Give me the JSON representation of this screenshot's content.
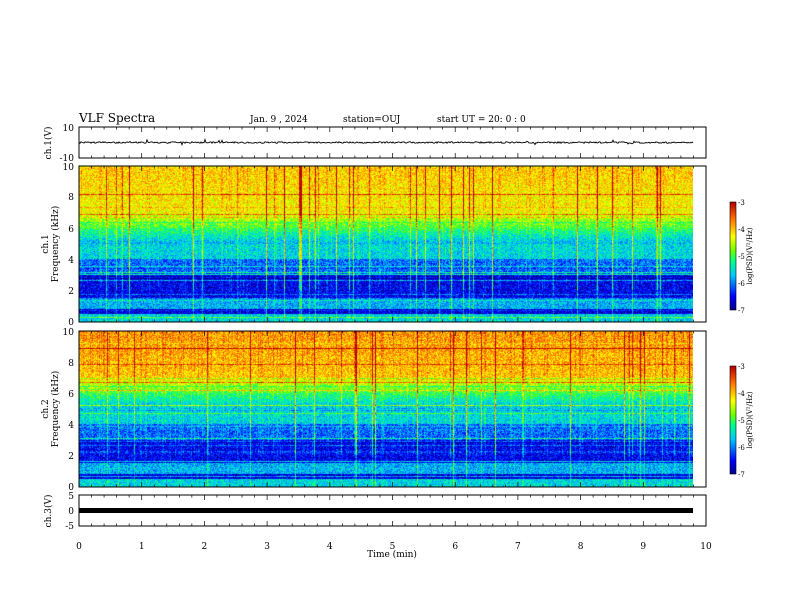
{
  "header": {
    "title": "VLF Spectra",
    "date": "Jan. 9 , 2024",
    "station": "station=OUJ",
    "start": "start UT =  20: 0  : 0"
  },
  "chart_data": [
    {
      "type": "line",
      "name": "ch1-waveform",
      "ylabel": "ch.1(V)",
      "ylim": [
        -10,
        10
      ],
      "yticks": [
        "10",
        "-10"
      ],
      "xlim": [
        0,
        10
      ],
      "baseline": 0,
      "noise_amplitude": 1,
      "color": "#000000"
    },
    {
      "type": "heatmap",
      "name": "ch1-spectrogram",
      "ylabel_channel": "ch.1",
      "ylabel": "Frequency (kHz)",
      "ylim": [
        0,
        10
      ],
      "yticks": [
        "0",
        "2",
        "4",
        "6",
        "8",
        "10"
      ],
      "xlim": [
        0,
        9.8
      ],
      "colorbar": {
        "label": "log(PSD)(V²/Hz)",
        "range": [
          -7,
          -3
        ],
        "ticks": [
          "-3",
          "-4",
          "-5",
          "-6",
          "-7"
        ]
      }
    },
    {
      "type": "heatmap",
      "name": "ch2-spectrogram",
      "ylabel_channel": "ch.2",
      "ylabel": "Frequency (kHz)",
      "ylim": [
        0,
        10
      ],
      "yticks": [
        "0",
        "2",
        "4",
        "6",
        "8",
        "10"
      ],
      "xlim": [
        0,
        9.8
      ],
      "colorbar": {
        "label": "log(PSD)(V²/Hz)",
        "range": [
          -7,
          -3
        ],
        "ticks": [
          "-3",
          "-4",
          "-5",
          "-6",
          "-7"
        ]
      }
    },
    {
      "type": "line",
      "name": "ch3-waveform",
      "ylabel": "ch.3(V)",
      "ylim": [
        -5,
        5
      ],
      "yticks": [
        "5",
        "0",
        "-5"
      ],
      "xlim": [
        0,
        10
      ],
      "baseline": 0,
      "color": "#000000"
    }
  ],
  "xaxis": {
    "label": "Time (min)",
    "ticks": [
      "0",
      "1",
      "2",
      "3",
      "4",
      "5",
      "6",
      "7",
      "8",
      "9",
      "10"
    ]
  },
  "colors": {
    "panel_border": "#000000",
    "trace": "#000000"
  }
}
